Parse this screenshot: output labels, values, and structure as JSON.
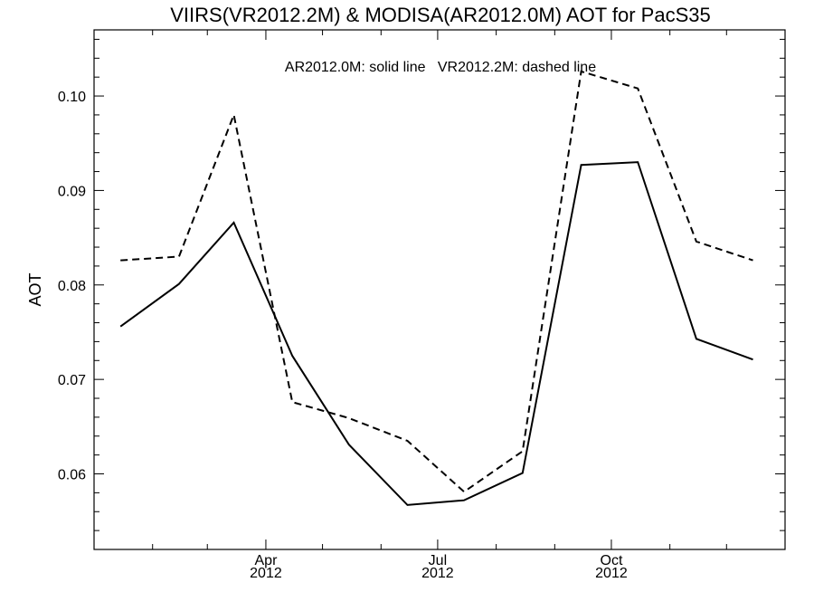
{
  "chart_data": {
    "type": "line",
    "title": "VIIRS(VR2012.2M) & MODISA(AR2012.0M)  AOT for PacS35",
    "annotation": "AR2012.0M: solid line   VR2012.2M: dashed line",
    "xlabel": "",
    "ylabel": "AOT",
    "x": [
      "2012-01-15",
      "2012-02-15",
      "2012-03-15",
      "2012-04-15",
      "2012-05-15",
      "2012-06-15",
      "2012-07-15",
      "2012-08-15",
      "2012-09-15",
      "2012-10-15",
      "2012-11-15",
      "2012-12-15"
    ],
    "x_range": [
      "2012-01-01",
      "2012-12-31"
    ],
    "xticks": [
      {
        "date": "2012-04-01",
        "label": "Apr",
        "year": "2012"
      },
      {
        "date": "2012-07-01",
        "label": "Jul",
        "year": "2012"
      },
      {
        "date": "2012-10-01",
        "label": "Oct",
        "year": "2012"
      }
    ],
    "ylim": [
      0.052,
      0.107
    ],
    "yticks": [
      {
        "value": 0.06,
        "label": "0.06"
      },
      {
        "value": 0.07,
        "label": "0.07"
      },
      {
        "value": 0.08,
        "label": "0.08"
      },
      {
        "value": 0.09,
        "label": "0.09"
      },
      {
        "value": 0.1,
        "label": "0.10"
      }
    ],
    "grid": false,
    "series": [
      {
        "name": "AR2012.0M",
        "style": "solid",
        "color": "#000000",
        "values": [
          0.0756,
          0.0801,
          0.0866,
          0.0725,
          0.0631,
          0.0567,
          0.0572,
          0.0601,
          0.0927,
          0.093,
          0.0743,
          0.0721
        ]
      },
      {
        "name": "VR2012.2M",
        "style": "dashed",
        "color": "#000000",
        "values": [
          0.0826,
          0.083,
          0.098,
          0.0676,
          0.0659,
          0.0635,
          0.0581,
          0.0624,
          0.1026,
          0.1008,
          0.0846,
          0.0826
        ]
      }
    ]
  }
}
